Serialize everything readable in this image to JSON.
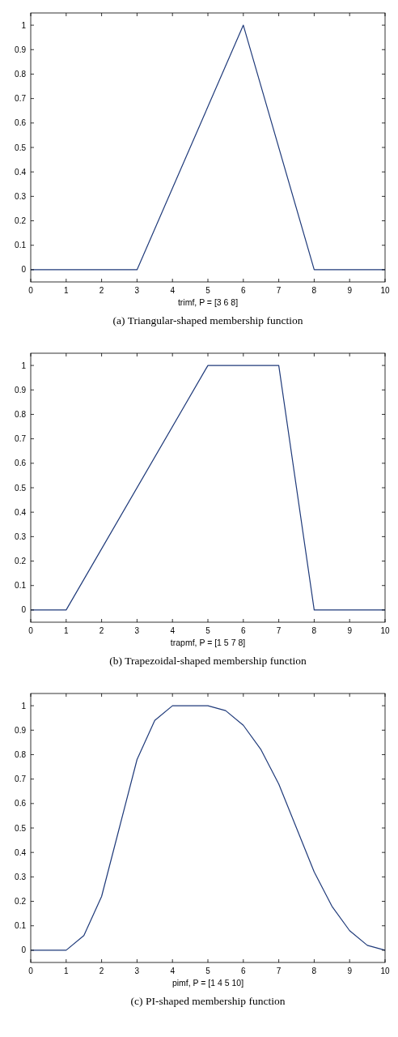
{
  "chart_data": [
    {
      "type": "line",
      "xlabel": "trimf, P = [3 6 8]",
      "annotations": [
        "(a) Triangular-shaped membership function"
      ],
      "x": [
        0,
        3,
        6,
        8,
        10
      ],
      "values": [
        0,
        0,
        1,
        0,
        0
      ],
      "color": "#1f3a7a",
      "xlim": [
        0,
        10
      ],
      "ylim": [
        -0.05,
        1.05
      ],
      "xticks": [
        0,
        1,
        2,
        3,
        4,
        5,
        6,
        7,
        8,
        9,
        10
      ],
      "yticks": [
        0,
        0.1,
        0.2,
        0.3,
        0.4,
        0.5,
        0.6,
        0.7,
        0.8,
        0.9,
        1
      ]
    },
    {
      "type": "line",
      "xlabel": "trapmf, P = [1 5 7 8]",
      "annotations": [
        "(b) Trapezoidal-shaped membership function"
      ],
      "x": [
        0,
        1,
        5,
        7,
        8,
        10
      ],
      "values": [
        0,
        0,
        1,
        1,
        0,
        0
      ],
      "color": "#1f3a7a",
      "xlim": [
        0,
        10
      ],
      "ylim": [
        -0.05,
        1.05
      ],
      "xticks": [
        0,
        1,
        2,
        3,
        4,
        5,
        6,
        7,
        8,
        9,
        10
      ],
      "yticks": [
        0,
        0.1,
        0.2,
        0.3,
        0.4,
        0.5,
        0.6,
        0.7,
        0.8,
        0.9,
        1
      ]
    },
    {
      "type": "line",
      "xlabel": "pimf, P = [1 4 5 10]",
      "annotations": [
        "(c) PI-shaped membership function"
      ],
      "x": [
        0,
        1,
        1.5,
        2,
        2.5,
        3,
        3.5,
        4,
        5,
        5.5,
        6,
        6.5,
        7,
        7.5,
        8,
        8.5,
        9,
        9.5,
        10
      ],
      "values": [
        0,
        0,
        0.06,
        0.22,
        0.5,
        0.78,
        0.94,
        1,
        1,
        0.98,
        0.92,
        0.82,
        0.68,
        0.5,
        0.32,
        0.18,
        0.08,
        0.02,
        0
      ],
      "color": "#1f3a7a",
      "xlim": [
        0,
        10
      ],
      "ylim": [
        -0.05,
        1.05
      ],
      "xticks": [
        0,
        1,
        2,
        3,
        4,
        5,
        6,
        7,
        8,
        9,
        10
      ],
      "yticks": [
        0,
        0.1,
        0.2,
        0.3,
        0.4,
        0.5,
        0.6,
        0.7,
        0.8,
        0.9,
        1
      ]
    }
  ]
}
